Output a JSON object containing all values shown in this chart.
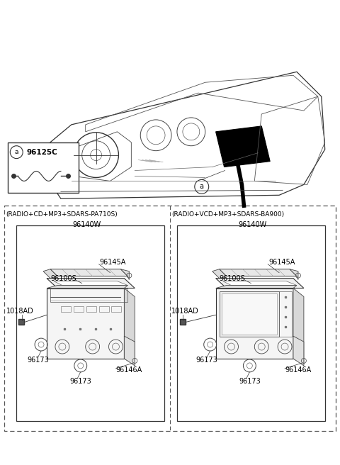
{
  "bg_color": "#ffffff",
  "text_color": "#000000",
  "line_color": "#333333",
  "fig_width": 4.8,
  "fig_height": 6.56,
  "dpi": 100,
  "part_code_a": "96125C",
  "left_panel_title": "(RADIO+CD+MP3+SDARS-PA710S)",
  "left_panel_code": "96140W",
  "right_panel_title": "(RADIO+VCD+MP3+SDARS-BA900)",
  "right_panel_code": "96140W"
}
